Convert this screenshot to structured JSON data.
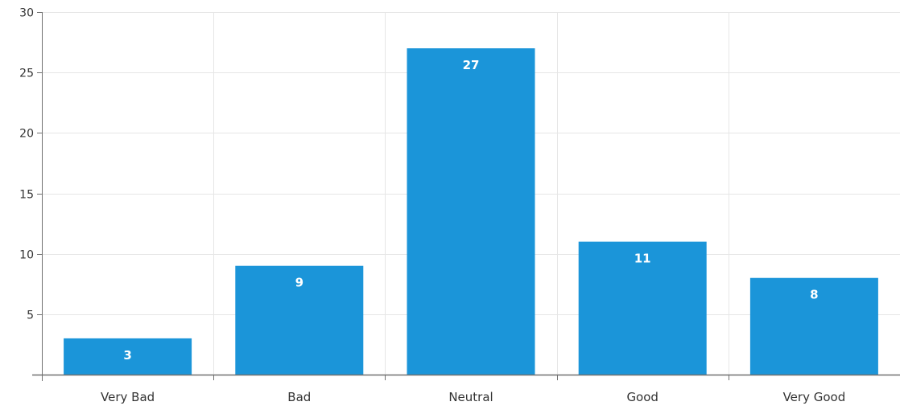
{
  "chart_data": {
    "type": "bar",
    "title": "",
    "xlabel": "",
    "ylabel": "",
    "categories": [
      "Very Bad",
      "Bad",
      "Neutral",
      "Good",
      "Very Good"
    ],
    "values": [
      3,
      9,
      27,
      11,
      8
    ],
    "data_labels": [
      "3",
      "9",
      "27",
      "11",
      "8"
    ],
    "ylim": [
      0,
      30
    ],
    "yticks": [
      5,
      10,
      15,
      20,
      25,
      30
    ],
    "ytick_labels": [
      "5",
      "10",
      "15",
      "20",
      "25",
      "30"
    ],
    "grid": true,
    "legend": "none",
    "bar_color": "#1b95d9",
    "label_color": "#ffffff",
    "grid_color": "#e6e6e6",
    "axis_color": "#707070",
    "tick_text_color": "#333333"
  }
}
